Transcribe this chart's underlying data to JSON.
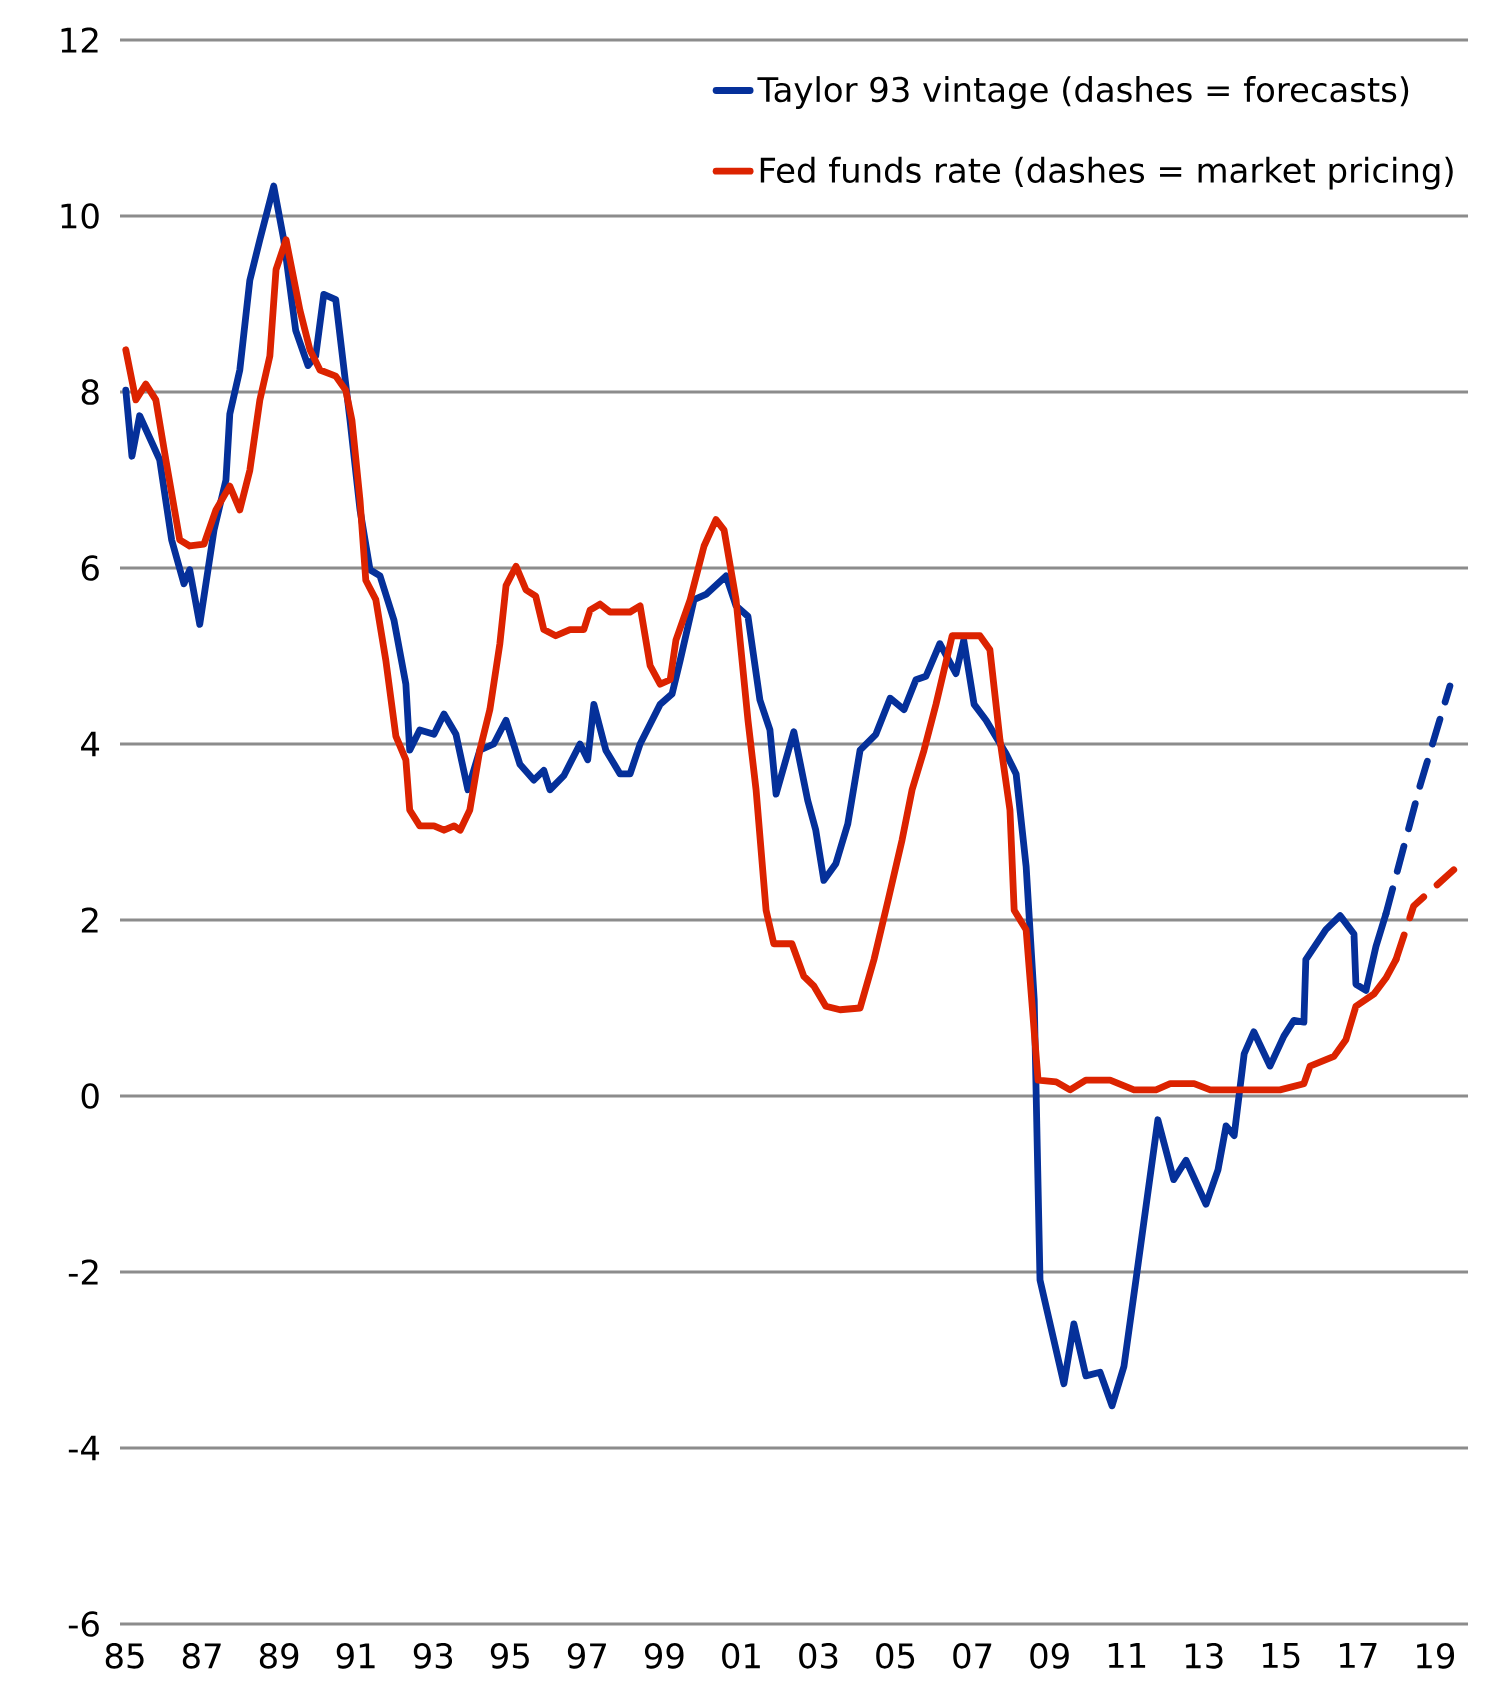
{
  "chart_data": {
    "type": "line",
    "grid": "y",
    "legend": "top right",
    "line_style": "solid",
    "marker": "none",
    "xlim": [
      1984.87,
      2019.86
    ],
    "ylim": [
      -6,
      12
    ],
    "xticks": [
      {
        "value": 1985,
        "label": "85"
      },
      {
        "value": 1987,
        "label": "87"
      },
      {
        "value": 1989,
        "label": "89"
      },
      {
        "value": 1991,
        "label": "91"
      },
      {
        "value": 1993,
        "label": "93"
      },
      {
        "value": 1995,
        "label": "95"
      },
      {
        "value": 1997,
        "label": "97"
      },
      {
        "value": 1999,
        "label": "99"
      },
      {
        "value": 2001,
        "label": "01"
      },
      {
        "value": 2003,
        "label": "03"
      },
      {
        "value": 2005,
        "label": "05"
      },
      {
        "value": 2007,
        "label": "07"
      },
      {
        "value": 2009,
        "label": "09"
      },
      {
        "value": 2011,
        "label": "11"
      },
      {
        "value": 2013,
        "label": "13"
      },
      {
        "value": 2015,
        "label": "15"
      },
      {
        "value": 2017,
        "label": "17"
      },
      {
        "value": 2019,
        "label": "19"
      }
    ],
    "yticks": [
      -6,
      -4,
      -2,
      0,
      2,
      4,
      6,
      8,
      10,
      12
    ],
    "series": [
      {
        "name": "Taylor 93 vintage (dashes = forecasts)",
        "color": "#05309a",
        "x": [
          1985.02,
          1985.18,
          1985.38,
          1985.9,
          1986.21,
          1986.53,
          1986.68,
          1986.94,
          1987.31,
          1987.62,
          1987.72,
          1987.98,
          1988.24,
          1988.5,
          1988.86,
          1989.12,
          1989.43,
          1989.75,
          1989.95,
          1990.16,
          1990.47,
          1990.84,
          1991.1,
          1991.36,
          1991.62,
          1991.98,
          1992.29,
          1992.39,
          1992.65,
          1993.02,
          1993.28,
          1993.59,
          1993.9,
          1994.21,
          1994.57,
          1994.89,
          1995.25,
          1995.61,
          1995.87,
          1996.03,
          1996.39,
          1996.81,
          1997.01,
          1997.17,
          1997.48,
          1997.85,
          1998.11,
          1998.37,
          1998.89,
          1999.2,
          1999.41,
          1999.77,
          2000.08,
          2000.6,
          2000.86,
          2001.17,
          2001.48,
          2001.74,
          2001.9,
          2002.36,
          2002.72,
          2002.93,
          2003.14,
          2003.45,
          2003.76,
          2004.08,
          2004.49,
          2004.86,
          2005.22,
          2005.53,
          2005.79,
          2006.15,
          2006.57,
          2006.77,
          2007.04,
          2007.35,
          2007.87,
          2008.13,
          2008.39,
          2008.6,
          2008.75,
          2009.37,
          2009.63,
          2009.94,
          2010.31,
          2010.62,
          2010.93,
          2011.24,
          2011.81,
          2012.22,
          2012.54,
          2013.06,
          2013.37,
          2013.58,
          2013.79,
          2014.05,
          2014.3,
          2014.72,
          2015.08,
          2015.34,
          2015.6,
          2015.65,
          2016.17,
          2016.54,
          2016.9,
          2016.95,
          2017.21,
          2017.47,
          2017.73
        ],
        "values": [
          8.02,
          7.27,
          7.73,
          7.23,
          6.32,
          5.82,
          5.98,
          5.36,
          6.43,
          7.0,
          7.75,
          8.25,
          9.27,
          9.73,
          10.34,
          9.73,
          8.7,
          8.3,
          8.41,
          9.11,
          9.05,
          7.68,
          6.66,
          5.98,
          5.91,
          5.41,
          4.68,
          3.93,
          4.16,
          4.11,
          4.34,
          4.11,
          3.48,
          3.93,
          4.0,
          4.27,
          3.77,
          3.59,
          3.7,
          3.48,
          3.64,
          4.0,
          3.82,
          4.45,
          3.93,
          3.66,
          3.66,
          4.0,
          4.45,
          4.57,
          4.95,
          5.64,
          5.7,
          5.91,
          5.57,
          5.45,
          4.5,
          4.16,
          3.43,
          4.14,
          3.36,
          3.02,
          2.45,
          2.64,
          3.09,
          3.93,
          4.11,
          4.52,
          4.39,
          4.73,
          4.77,
          5.14,
          4.8,
          5.18,
          4.45,
          4.27,
          3.89,
          3.66,
          2.61,
          1.09,
          -2.09,
          -3.27,
          -2.59,
          -3.18,
          -3.14,
          -3.52,
          -3.07,
          -2.09,
          -0.27,
          -0.95,
          -0.73,
          -1.23,
          -0.84,
          -0.34,
          -0.45,
          0.48,
          0.73,
          0.34,
          0.68,
          0.86,
          0.84,
          1.55,
          1.89,
          2.05,
          1.84,
          1.27,
          1.2,
          1.7,
          2.07
        ]
      },
      {
        "name": "Fed funds rate (dashes = market pricing)",
        "color": "#dc2300",
        "x": [
          1985.02,
          1985.28,
          1985.54,
          1985.8,
          1986.06,
          1986.42,
          1986.68,
          1987.05,
          1987.36,
          1987.72,
          1987.98,
          1988.24,
          1988.5,
          1988.76,
          1988.92,
          1989.18,
          1989.54,
          1989.8,
          1990.06,
          1990.47,
          1990.73,
          1990.89,
          1991.1,
          1991.25,
          1991.51,
          1991.77,
          1992.03,
          1992.29,
          1992.39,
          1992.65,
          1993.02,
          1993.28,
          1993.54,
          1993.7,
          1993.95,
          1994.21,
          1994.47,
          1994.73,
          1994.89,
          1995.15,
          1995.41,
          1995.66,
          1995.87,
          1996.18,
          1996.55,
          1996.91,
          1997.07,
          1997.33,
          1997.59,
          1998.11,
          1998.37,
          1998.63,
          1998.89,
          1999.15,
          1999.3,
          1999.67,
          2000.03,
          2000.34,
          2000.55,
          2000.86,
          2001.17,
          2001.38,
          2001.64,
          2001.84,
          2002.31,
          2002.62,
          2002.88,
          2003.19,
          2003.56,
          2004.08,
          2004.44,
          2004.81,
          2005.17,
          2005.43,
          2005.74,
          2006.05,
          2006.47,
          2006.93,
          2007.19,
          2007.45,
          2007.71,
          2007.97,
          2008.08,
          2008.39,
          2008.7,
          2009.17,
          2009.53,
          2009.94,
          2010.57,
          2011.19,
          2011.76,
          2012.13,
          2012.75,
          2013.17,
          2014.98,
          2015.6,
          2015.76,
          2016.38,
          2016.69,
          2016.95,
          2017.42,
          2017.73,
          2017.99
        ],
        "values": [
          8.48,
          7.91,
          8.09,
          7.91,
          7.23,
          6.32,
          6.25,
          6.27,
          6.66,
          6.93,
          6.66,
          7.11,
          7.91,
          8.41,
          9.39,
          9.73,
          8.93,
          8.48,
          8.25,
          8.18,
          8.02,
          7.68,
          6.77,
          5.86,
          5.64,
          4.95,
          4.09,
          3.82,
          3.25,
          3.07,
          3.07,
          3.02,
          3.07,
          3.02,
          3.25,
          3.93,
          4.39,
          5.14,
          5.8,
          6.02,
          5.75,
          5.68,
          5.3,
          5.23,
          5.3,
          5.3,
          5.52,
          5.59,
          5.5,
          5.5,
          5.57,
          4.89,
          4.68,
          4.73,
          5.18,
          5.64,
          6.25,
          6.55,
          6.43,
          5.64,
          4.27,
          3.48,
          2.11,
          1.73,
          1.73,
          1.36,
          1.25,
          1.02,
          0.98,
          1.0,
          1.55,
          2.23,
          2.91,
          3.48,
          3.93,
          4.45,
          5.23,
          5.23,
          5.23,
          5.07,
          4.05,
          3.25,
          2.11,
          1.89,
          0.18,
          0.16,
          0.07,
          0.18,
          0.18,
          0.07,
          0.07,
          0.14,
          0.14,
          0.07,
          0.07,
          0.14,
          0.34,
          0.45,
          0.64,
          1.02,
          1.16,
          1.34,
          1.55
        ]
      },
      {
        "color": "#05309a",
        "line_style": "dashed",
        "x": [
          2017.73,
          2018.61,
          2019.39
        ],
        "values": [
          2.07,
          3.52,
          4.66
        ]
      },
      {
        "color": "#dc2300",
        "line_style": "dashed",
        "x": [
          2017.99,
          2018.45,
          2019.49
        ],
        "values": [
          1.55,
          2.16,
          2.57
        ]
      }
    ]
  }
}
